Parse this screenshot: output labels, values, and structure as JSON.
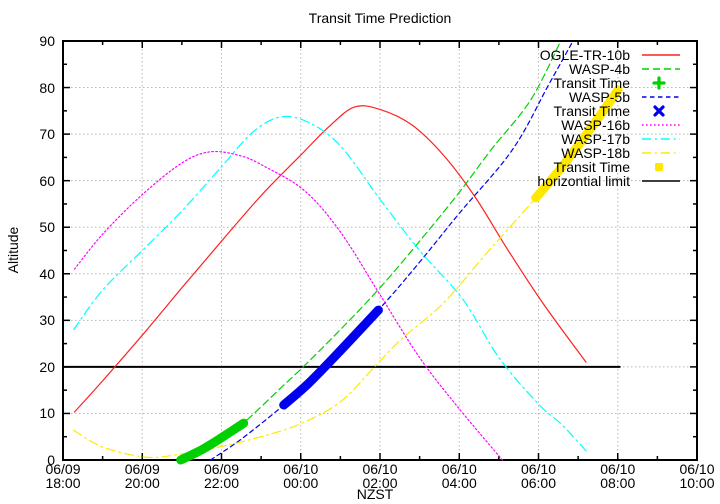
{
  "chart_data": {
    "type": "line",
    "title": "Transit Time Prediction",
    "xlabel": "NZST",
    "ylabel": "Altitude",
    "x_range_hours": [
      0,
      16
    ],
    "ylim": [
      0,
      90
    ],
    "grid": true,
    "legend_position": "top-right-inside",
    "colors": {
      "red": "#ff2020",
      "green": "#00d000",
      "blue": "#0000ee",
      "magenta": "#ff00ff",
      "cyan": "#00ffff",
      "yellow": "#ffe800",
      "black": "#000000",
      "grid_gray": "#b8b8b8"
    },
    "x_ticks": [
      {
        "hour": 0,
        "date": "06/09",
        "time": "18:00"
      },
      {
        "hour": 2,
        "date": "06/09",
        "time": "20:00"
      },
      {
        "hour": 4,
        "date": "06/09",
        "time": "22:00"
      },
      {
        "hour": 6,
        "date": "06/10",
        "time": "00:00"
      },
      {
        "hour": 8,
        "date": "06/10",
        "time": "02:00"
      },
      {
        "hour": 10,
        "date": "06/10",
        "time": "04:00"
      },
      {
        "hour": 12,
        "date": "06/10",
        "time": "06:00"
      },
      {
        "hour": 14,
        "date": "06/10",
        "time": "08:00"
      },
      {
        "hour": 16,
        "date": "06/10",
        "time": "10:00"
      }
    ],
    "y_ticks": [
      0,
      10,
      20,
      30,
      40,
      50,
      60,
      70,
      80,
      90
    ],
    "series": [
      {
        "name": "OGLE-TR-10b",
        "color": "#ff2020",
        "style": "solid",
        "points": [
          [
            0.29,
            10.3
          ],
          [
            1,
            17
          ],
          [
            2,
            26.8
          ],
          [
            3,
            37
          ],
          [
            4,
            47
          ],
          [
            5,
            56.8
          ],
          [
            6,
            65.5
          ],
          [
            6.7,
            71.5
          ],
          [
            7.35,
            75.8
          ],
          [
            8,
            75.3
          ],
          [
            8.8,
            72
          ],
          [
            9.6,
            65.5
          ],
          [
            10.4,
            56.5
          ],
          [
            11.2,
            45.5
          ],
          [
            12.1,
            33.8
          ],
          [
            13.2,
            21
          ]
        ]
      },
      {
        "name": "WASP-4b",
        "color": "#00d000",
        "style": "dashed",
        "points": [
          [
            2.99,
            0
          ],
          [
            4,
            4.8
          ],
          [
            4.56,
            8
          ],
          [
            5.5,
            15.5
          ],
          [
            6,
            19.5
          ],
          [
            7,
            28
          ],
          [
            8,
            37
          ],
          [
            9,
            47
          ],
          [
            10,
            57.5
          ],
          [
            10.8,
            66.6
          ],
          [
            11.8,
            77.3
          ],
          [
            12.56,
            90
          ]
        ]
      },
      {
        "name": "Transit Time",
        "color": "#00d000",
        "style": "marker-plus",
        "points": [
          [
            2.97,
            0
          ],
          [
            3.5,
            2.2
          ],
          [
            4.0,
            4.8
          ],
          [
            4.56,
            7.9
          ]
        ]
      },
      {
        "name": "WASP-5b",
        "color": "#0000ee",
        "style": "dashed-short",
        "points": [
          [
            3.72,
            0
          ],
          [
            4.5,
            4.5
          ],
          [
            5.57,
            11.8
          ],
          [
            6.5,
            19
          ],
          [
            7.96,
            32.2
          ],
          [
            9,
            42.5
          ],
          [
            10,
            53
          ],
          [
            11.34,
            66.6
          ],
          [
            12.25,
            80.5
          ],
          [
            12.87,
            90
          ]
        ]
      },
      {
        "name": "Transit Time",
        "color": "#0000ee",
        "style": "marker-x",
        "points": [
          [
            5.57,
            11.8
          ],
          [
            6.2,
            16.5
          ],
          [
            7.0,
            23.5
          ],
          [
            7.96,
            32.2
          ]
        ]
      },
      {
        "name": "WASP-16b",
        "color": "#ff00ff",
        "style": "dotted",
        "points": [
          [
            0.29,
            41
          ],
          [
            1,
            48.5
          ],
          [
            2,
            57
          ],
          [
            3,
            63.8
          ],
          [
            3.72,
            66.2
          ],
          [
            4.5,
            65.3
          ],
          [
            5.1,
            63
          ],
          [
            6.1,
            57.8
          ],
          [
            7,
            49
          ],
          [
            8,
            35.5
          ],
          [
            9,
            22
          ],
          [
            10,
            11
          ],
          [
            11.09,
            0
          ]
        ]
      },
      {
        "name": "WASP-17b",
        "color": "#00ffff",
        "style": "dashdot",
        "points": [
          [
            0.27,
            28
          ],
          [
            1,
            36.5
          ],
          [
            2,
            45
          ],
          [
            3,
            53.5
          ],
          [
            4,
            63
          ],
          [
            4.8,
            70.5
          ],
          [
            5.5,
            73.7
          ],
          [
            6.2,
            72.5
          ],
          [
            7,
            67.5
          ],
          [
            8,
            56
          ],
          [
            9,
            45
          ],
          [
            10.1,
            34.4
          ],
          [
            11,
            22
          ],
          [
            12,
            12
          ],
          [
            12.6,
            7.5
          ],
          [
            13.25,
            1.5
          ]
        ]
      },
      {
        "name": "WASP-18b",
        "color": "#ffe800",
        "style": "dashdot",
        "points": [
          [
            0.27,
            6.4
          ],
          [
            1,
            2.8
          ],
          [
            2.1,
            0.6
          ],
          [
            3,
            1.3
          ],
          [
            4,
            2.9
          ],
          [
            5,
            5
          ],
          [
            6,
            7.8
          ],
          [
            7,
            12.5
          ],
          [
            7.84,
            19.8
          ],
          [
            8.52,
            25.8
          ],
          [
            9.6,
            33.7
          ],
          [
            10.7,
            44.5
          ],
          [
            11.93,
            56.3
          ],
          [
            13,
            67.5
          ],
          [
            14.01,
            79.5
          ]
        ]
      },
      {
        "name": "Transit Time",
        "color": "#ffe800",
        "style": "marker-square",
        "points": [
          [
            11.93,
            56.3
          ],
          [
            12.5,
            62
          ],
          [
            13.2,
            69.8
          ],
          [
            14.01,
            79.5
          ]
        ]
      },
      {
        "name": "horizontial limit",
        "color": "#000000",
        "style": "limit",
        "points": [
          [
            0,
            20
          ],
          [
            14.05,
            20
          ]
        ]
      }
    ]
  }
}
